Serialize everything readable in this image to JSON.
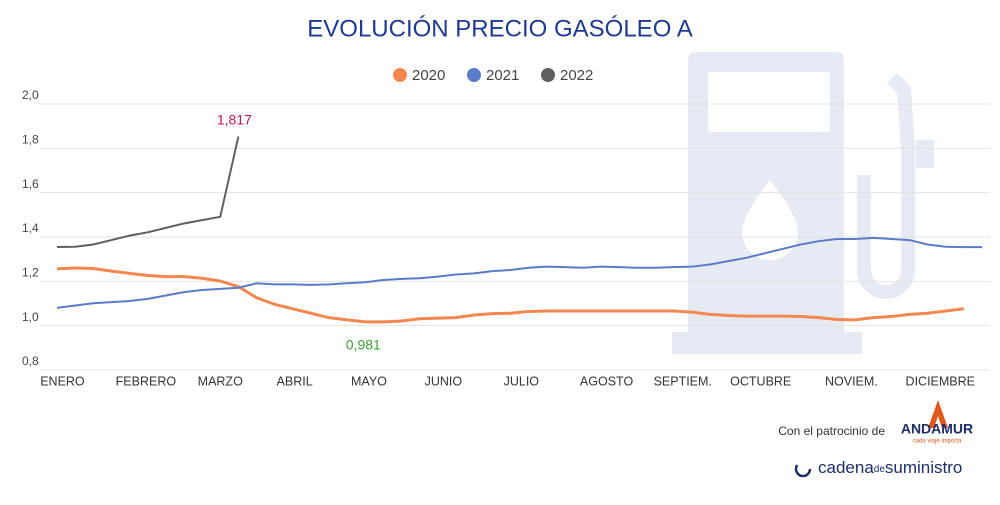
{
  "chart_data": {
    "type": "line",
    "title": "EVOLUCIÓN PRECIO GASÓLEO A",
    "x": [
      0,
      1,
      2,
      3,
      4,
      5,
      6,
      7,
      8,
      9,
      10,
      11,
      12,
      13,
      14,
      15,
      16,
      17,
      18,
      19,
      20,
      21,
      22,
      23,
      24,
      25,
      26,
      27,
      28,
      29,
      30,
      31,
      32,
      33,
      34,
      35,
      36,
      37,
      38,
      39,
      40,
      41,
      42,
      43,
      44,
      45,
      46,
      47,
      48,
      49,
      50,
      51
    ],
    "xlim": [
      0,
      51
    ],
    "xticks": [
      {
        "value": 0.3,
        "label": "ENERO"
      },
      {
        "value": 4.9,
        "label": "FEBRERO"
      },
      {
        "value": 9,
        "label": "MARZO"
      },
      {
        "value": 13.1,
        "label": "ABRIL"
      },
      {
        "value": 17.2,
        "label": "MAYO"
      },
      {
        "value": 21.3,
        "label": "JUNIO"
      },
      {
        "value": 25.6,
        "label": "JULIO"
      },
      {
        "value": 30.3,
        "label": "AGOSTO"
      },
      {
        "value": 34.5,
        "label": "SEPTIEM."
      },
      {
        "value": 38.8,
        "label": "OCTUBRE"
      },
      {
        "value": 43.8,
        "label": "NOVIEM."
      },
      {
        "value": 48.7,
        "label": "DICIEMBRE"
      }
    ],
    "ylim": [
      0.8,
      2.0
    ],
    "yticks": [
      {
        "value": 0.8,
        "label": "0,8"
      },
      {
        "value": 1.0,
        "label": "1,0"
      },
      {
        "value": 1.2,
        "label": "1,2"
      },
      {
        "value": 1.4,
        "label": "1,4"
      },
      {
        "value": 1.6,
        "label": "1,6"
      },
      {
        "value": 1.8,
        "label": "1,8"
      },
      {
        "value": 2.0,
        "label": "2,0"
      }
    ],
    "grid": true,
    "legend": "top",
    "series": [
      {
        "name": "2020",
        "color": "#f4874f",
        "values": [
          1.22,
          1.224,
          1.222,
          1.21,
          1.2,
          1.19,
          1.185,
          1.185,
          1.178,
          1.165,
          1.14,
          1.09,
          1.06,
          1.04,
          1.02,
          1.0,
          0.99,
          0.981,
          0.981,
          0.985,
          0.995,
          0.998,
          1.0,
          1.012,
          1.018,
          1.02,
          1.028,
          1.03,
          1.03,
          1.03,
          1.03,
          1.03,
          1.03,
          1.03,
          1.03,
          1.025,
          1.015,
          1.01,
          1.007,
          1.007,
          1.007,
          1.005,
          1.0,
          0.992,
          0.99,
          1.0,
          1.005,
          1.015,
          1.02,
          1.03,
          1.04,
          null
        ],
        "value_labels": {
          "17": "0,981"
        }
      },
      {
        "name": "2021",
        "color": "#5b7bc8",
        "values": [
          1.044,
          1.055,
          1.065,
          1.07,
          1.075,
          1.085,
          1.1,
          1.115,
          1.125,
          1.13,
          1.135,
          1.155,
          1.15,
          1.15,
          1.148,
          1.15,
          1.155,
          1.16,
          1.17,
          1.175,
          1.178,
          1.185,
          1.195,
          1.2,
          1.21,
          1.215,
          1.225,
          1.23,
          1.228,
          1.225,
          1.23,
          1.228,
          1.225,
          1.225,
          1.228,
          1.23,
          1.24,
          1.255,
          1.27,
          1.29,
          1.31,
          1.33,
          1.345,
          1.355,
          1.355,
          1.36,
          1.355,
          1.35,
          1.33,
          1.32,
          1.318,
          1.318
        ]
      },
      {
        "name": "2022",
        "color": "#5f5f5f",
        "values": [
          1.319,
          1.32,
          1.33,
          1.35,
          1.37,
          1.385,
          1.405,
          1.425,
          1.44,
          1.455,
          1.817,
          null,
          null,
          null,
          null,
          null,
          null,
          null,
          null,
          null,
          null,
          null,
          null,
          null,
          null,
          null,
          null,
          null,
          null,
          null,
          null,
          null,
          null,
          null,
          null,
          null,
          null,
          null,
          null,
          null,
          null,
          null,
          null,
          null,
          null,
          null,
          null,
          null,
          null,
          null,
          null,
          null
        ],
        "value_labels": {
          "10": "1,817"
        }
      }
    ]
  },
  "sponsor": {
    "text": "Con el patrocinio de",
    "brand": "ANDAMUR",
    "tagline": "cada viaje importa",
    "publisher": [
      "cadena",
      "de",
      "suministro"
    ]
  }
}
